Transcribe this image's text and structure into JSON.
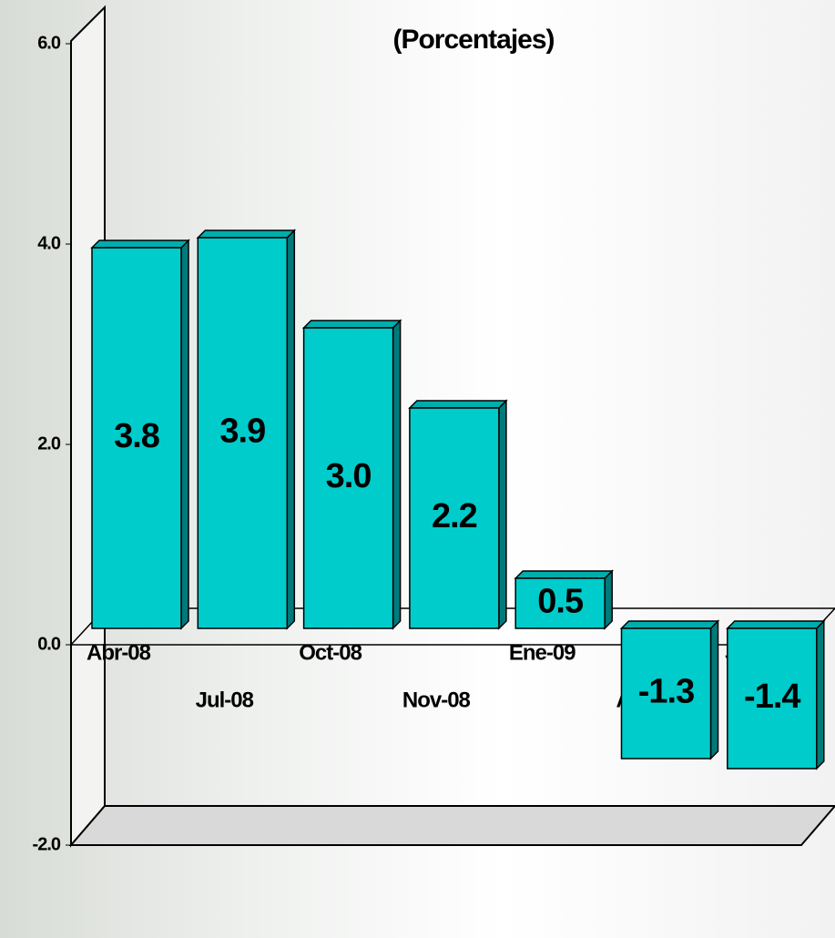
{
  "chart_data": {
    "type": "bar3d",
    "title": "(Porcentajes)",
    "categories": [
      "Abr-08",
      "Jul-08",
      "Oct-08",
      "Nov-08",
      "Ene-09",
      "Abr-09",
      "Jul-09"
    ],
    "values": [
      3.8,
      3.9,
      3.0,
      2.2,
      0.5,
      -1.3,
      -1.4
    ],
    "value_labels": [
      "3.8",
      "3.9",
      "3.0",
      "2.2",
      "0.5",
      "-1.3",
      "-1.4"
    ],
    "color": "#00cccc",
    "ylim": [
      -2,
      6
    ],
    "yticks": [
      {
        "value": -2,
        "label": "-2.0"
      },
      {
        "value": 0,
        "label": "0.0"
      },
      {
        "value": 2,
        "label": "2.0"
      },
      {
        "value": 4,
        "label": "4.0"
      },
      {
        "value": 6,
        "label": "6.0"
      }
    ]
  }
}
